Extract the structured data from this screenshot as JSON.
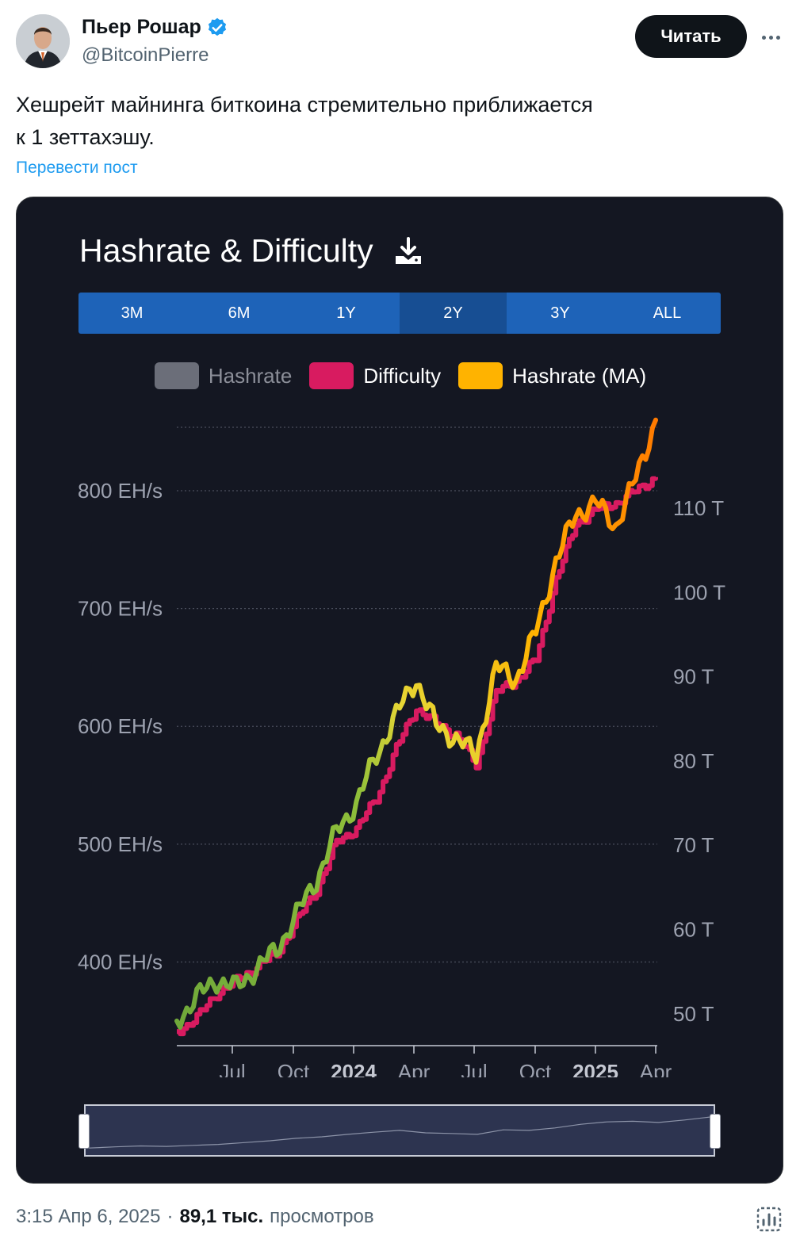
{
  "author": {
    "name": "Пьер Рошар",
    "handle": "@BitcoinPierre",
    "verified": true,
    "follow_label": "Читать"
  },
  "tweet": {
    "text_line1": "Хешрейт майнинга биткоина стремительно приближается",
    "text_line2": "к 1 зеттахэшу.",
    "translate_label": "Перевести пост"
  },
  "chart": {
    "title": "Hashrate & Difficulty",
    "tabs": [
      "3M",
      "6M",
      "1Y",
      "2Y",
      "3Y",
      "ALL"
    ],
    "active_tab": "2Y",
    "legend": [
      {
        "label": "Hashrate",
        "color": "#6b6e79",
        "enabled": false
      },
      {
        "label": "Difficulty",
        "color": "#d81b60",
        "enabled": true
      },
      {
        "label": "Hashrate (MA)",
        "color": "#ffb300",
        "enabled": true
      }
    ]
  },
  "chart_data": {
    "type": "line",
    "title": "Hashrate & Difficulty",
    "x_tick_labels": [
      "Jul",
      "Oct",
      "2024",
      "Apr",
      "Jul",
      "Oct",
      "2025",
      "Apr"
    ],
    "y_left_tick_labels": [
      "800 EH/s",
      "700 EH/s",
      "600 EH/s",
      "500 EH/s",
      "400 EH/s"
    ],
    "y_right_tick_labels": [
      "110 T",
      "100 T",
      "90 T",
      "80 T",
      "70 T",
      "60 T",
      "50 T"
    ],
    "x_range": [
      "2023-04",
      "2025-04"
    ],
    "y_left_range_EHs": [
      340,
      860
    ],
    "y_right_range_T": [
      48,
      115
    ],
    "grid": true,
    "series": [
      {
        "name": "Difficulty",
        "unit": "T",
        "x": [
          "2023-04",
          "2023-05",
          "2023-06",
          "2023-07",
          "2023-08",
          "2023-09",
          "2023-10",
          "2023-11",
          "2023-12",
          "2024-01",
          "2024-02",
          "2024-03",
          "2024-04",
          "2024-05",
          "2024-06",
          "2024-07",
          "2024-08",
          "2024-09",
          "2024-10",
          "2024-11",
          "2024-12",
          "2025-01",
          "2025-02",
          "2025-03",
          "2025-04"
        ],
        "values": [
          47.9,
          49.5,
          52.4,
          53.9,
          55.6,
          57.1,
          61.0,
          64.7,
          70.3,
          72.0,
          75.5,
          81.5,
          86.3,
          84.4,
          83.1,
          79.5,
          88.1,
          89.5,
          92.0,
          101.6,
          108.1,
          109.8,
          110.6,
          112.0,
          113.7
        ]
      },
      {
        "name": "Hashrate (MA)",
        "unit": "EH/s",
        "x": [
          "2023-04",
          "2023-05",
          "2023-06",
          "2023-07",
          "2023-08",
          "2023-09",
          "2023-10",
          "2023-11",
          "2023-12",
          "2024-01",
          "2024-02",
          "2024-03",
          "2024-04",
          "2024-05",
          "2024-06",
          "2024-07",
          "2024-08",
          "2024-09",
          "2024-10",
          "2024-11",
          "2024-12",
          "2025-01",
          "2025-02",
          "2025-03",
          "2025-04"
        ],
        "values": [
          350,
          370,
          385,
          378,
          395,
          410,
          440,
          470,
          510,
          535,
          575,
          610,
          640,
          600,
          590,
          575,
          650,
          640,
          680,
          740,
          780,
          790,
          770,
          810,
          860
        ]
      }
    ]
  },
  "footer": {
    "timestamp": "3:15 Апр 6, 2025",
    "separator": "·",
    "views_count": "89,1 тыс.",
    "views_label": "просмотров"
  }
}
